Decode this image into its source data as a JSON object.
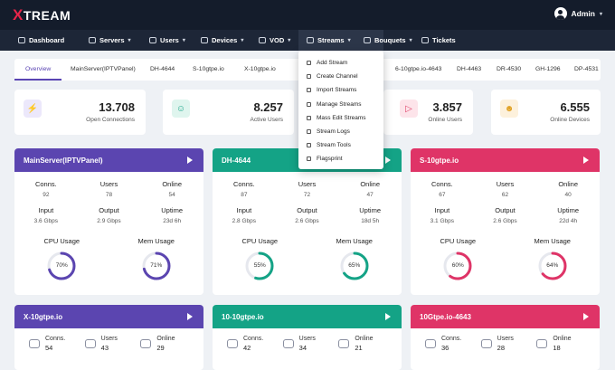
{
  "brand": {
    "logo_x": "X",
    "logo_rest": "TREAM"
  },
  "user": {
    "name": "Admin",
    "caret": "▾"
  },
  "nav": [
    {
      "label": "Dashboard"
    },
    {
      "label": "Servers",
      "caret": "▾"
    },
    {
      "label": "Users",
      "caret": "▾"
    },
    {
      "label": "Devices",
      "caret": "▾"
    },
    {
      "label": "VOD",
      "caret": "▾"
    },
    {
      "label": "Streams",
      "caret": "▾"
    },
    {
      "label": "Bouquets",
      "caret": "▾"
    },
    {
      "label": "Tickets"
    }
  ],
  "streams_menu": [
    "Add Stream",
    "Create Channel",
    "Import Streams",
    "Manage Streams",
    "Mass Edit Streams",
    "Stream Logs",
    "Stream Tools",
    "Flagsprint"
  ],
  "tabs": [
    "Overview",
    "MainServer(IPTVPanel)",
    "DH-4644",
    "S-10gtpe.io",
    "X-10gtpe.io",
    "6-10gtpe.io-4643",
    "DH-4463",
    "DR-4530",
    "GH-1296",
    "DP-4531"
  ],
  "stats": [
    {
      "value": "13.708",
      "label": "Open Connections",
      "icon": "bolt-icon",
      "color": "#6a4fc7",
      "bg": "#ece8fb"
    },
    {
      "value": "8.257",
      "label": "Active Users",
      "icon": "users-icon",
      "color": "#1aa68a",
      "bg": "#dff5ee"
    },
    {
      "value": "3.857",
      "label": "Online Users",
      "icon": "play-icon",
      "color": "#e0436b",
      "bg": "#fde4ea"
    },
    {
      "value": "6.555",
      "label": "Online Devices",
      "icon": "user-icon",
      "color": "#e0a020",
      "bg": "#fdf1dc"
    }
  ],
  "labels": {
    "conns": "Conns.",
    "users": "Users",
    "online": "Online",
    "input": "Input",
    "output": "Output",
    "uptime": "Uptime",
    "cpu": "CPU Usage",
    "mem": "Mem Usage"
  },
  "servers": [
    {
      "name": "MainServer(IPTVPanel)",
      "color": "#5b45b0",
      "conns": "92",
      "users": "78",
      "online": "54",
      "input": "3.6 Gbps",
      "output": "2.9 Gbps",
      "uptime": "23d 6h",
      "cpu": "70%",
      "mem": "71%",
      "cpu_value": 0.7,
      "mem_value": 0.71
    },
    {
      "name": "DH-4644",
      "color": "#14a386",
      "conns": "87",
      "users": "72",
      "online": "47",
      "input": "2.8 Gbps",
      "output": "2.6 Gbps",
      "uptime": "18d 5h",
      "cpu": "55%",
      "mem": "65%",
      "cpu_value": 0.55,
      "mem_value": 0.65
    },
    {
      "name": "S-10gtpe.io",
      "color": "#df3467",
      "conns": "67",
      "users": "62",
      "online": "40",
      "input": "3.1 Gbps",
      "output": "2.6 Gbps",
      "uptime": "22d 4h",
      "cpu": "60%",
      "mem": "64%",
      "cpu_value": 0.6,
      "mem_value": 0.64
    }
  ],
  "mini_servers": [
    {
      "name": "X-10gtpe.io",
      "color": "#5b45b0",
      "conns": "54",
      "users": "43",
      "online": "29"
    },
    {
      "name": "10-10gtpe.io",
      "color": "#14a386",
      "conns": "42",
      "users": "34",
      "online": "21"
    },
    {
      "name": "10Gtpe.io-4643",
      "color": "#df3467",
      "conns": "36",
      "users": "28",
      "online": "18"
    }
  ]
}
